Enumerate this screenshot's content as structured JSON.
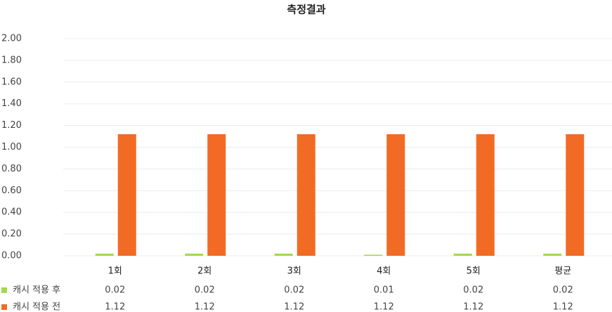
{
  "chart_data": {
    "type": "bar",
    "title": "측정결과",
    "categories": [
      "1회",
      "2회",
      "3회",
      "4회",
      "5회",
      "평균"
    ],
    "series": [
      {
        "name": "캐시 적용 후",
        "color": "#a2d94f",
        "values": [
          0.02,
          0.02,
          0.02,
          0.01,
          0.02,
          0.02
        ]
      },
      {
        "name": "캐시 적용 전",
        "color": "#f26b25",
        "values": [
          1.12,
          1.12,
          1.12,
          1.12,
          1.12,
          1.12
        ]
      }
    ],
    "ylim": [
      0,
      2
    ],
    "yticks": [
      {
        "value": 0,
        "label": "0.00"
      },
      {
        "value": 0.2,
        "label": "0.20"
      },
      {
        "value": 0.4,
        "label": "0.40"
      },
      {
        "value": 0.6,
        "label": "0.60"
      },
      {
        "value": 0.8,
        "label": "0.80"
      },
      {
        "value": 1,
        "label": "1.00"
      },
      {
        "value": 1.2,
        "label": "1.20"
      },
      {
        "value": 1.4,
        "label": "1.40"
      },
      {
        "value": 1.6,
        "label": "1.60"
      },
      {
        "value": 1.8,
        "label": "1.80"
      },
      {
        "value": 2,
        "label": "2.00"
      }
    ],
    "grid": true
  }
}
